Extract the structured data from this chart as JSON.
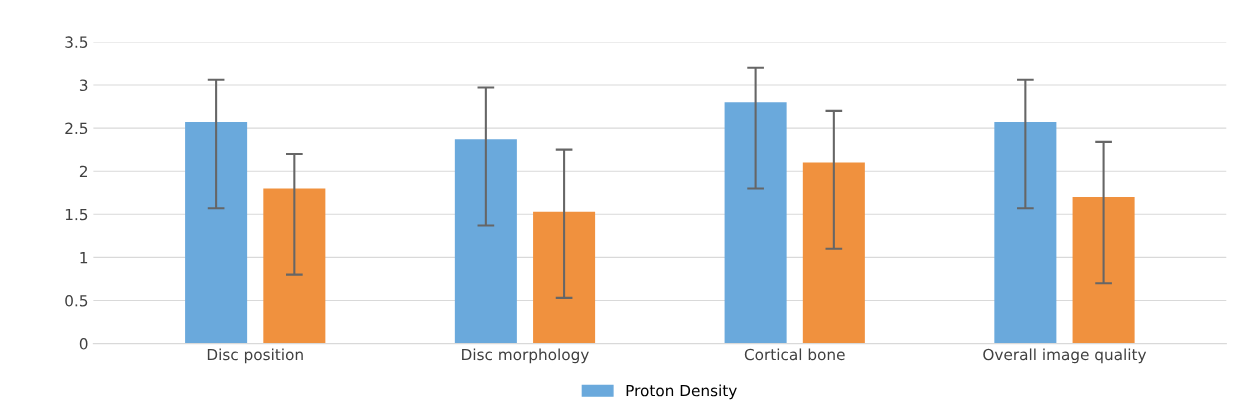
{
  "chart_data": {
    "type": "bar",
    "categories": [
      "Disc position",
      "Disc morphology",
      "Cortical bone",
      "Overall image quality"
    ],
    "series": [
      {
        "name": "Proton Density",
        "color": "#6aa9dc",
        "values": [
          2.57,
          2.37,
          2.8,
          2.57
        ],
        "errors": [
          [
            1.57,
            3.06
          ],
          [
            1.37,
            2.97
          ],
          [
            1.8,
            3.2
          ],
          [
            1.57,
            3.06
          ]
        ]
      },
      {
        "color": "#f0913e",
        "values": [
          1.8,
          1.53,
          2.1,
          1.7
        ],
        "errors": [
          [
            0.8,
            2.2
          ],
          [
            0.53,
            2.25
          ],
          [
            1.1,
            2.7
          ],
          [
            0.7,
            2.34
          ]
        ]
      }
    ],
    "ylim": [
      0,
      3.5
    ],
    "yticks": [
      0,
      {
        "value": 0.5,
        "label": "0.5"
      },
      1,
      {
        "value": 1.5,
        "label": "1.5"
      },
      2,
      {
        "value": 2.5,
        "label": "2.5"
      },
      3,
      {
        "value": 3.5,
        "label": "3.5"
      }
    ],
    "grid": "y",
    "legend": "bottom"
  }
}
